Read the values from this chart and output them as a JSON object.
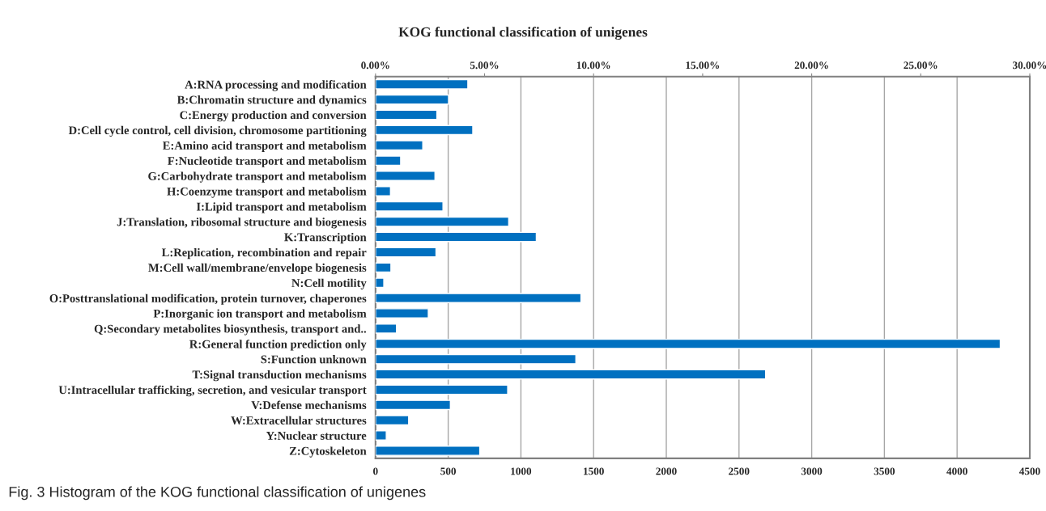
{
  "chart_data": {
    "type": "bar",
    "orientation": "horizontal",
    "title": "KOG functional classification of unigenes",
    "categories": [
      "A:RNA processing and modification",
      "B:Chromatin structure and dynamics",
      "C:Energy production and conversion",
      "D:Cell cycle control, cell division, chromosome partitioning",
      "E:Amino acid transport and metabolism",
      "F:Nucleotide transport and metabolism",
      "G:Carbohydrate transport and metabolism",
      "H:Coenzyme transport and metabolism",
      "I:Lipid transport and metabolism",
      "J:Translation, ribosomal structure and biogenesis",
      "K:Transcription",
      "L:Replication, recombination and repair",
      "M:Cell wall/membrane/envelope biogenesis",
      "N:Cell motility",
      "O:Posttranslational modification, protein turnover, chaperones",
      "P:Inorganic ion transport and metabolism",
      "Q:Secondary metabolites biosynthesis, transport and..",
      "R:General function prediction only",
      "S:Function unknown",
      "T:Signal transduction mechanisms",
      "U:Intracellular trafficking, secretion, and vesicular transport",
      "V:Defense mechanisms",
      "W:Extracellular structures",
      "Y:Nuclear structure",
      "Z:Cytoskeleton"
    ],
    "values": [
      635,
      502,
      422,
      669,
      325,
      173,
      409,
      103,
      464,
      916,
      1106,
      416,
      106,
      57,
      1413,
      363,
      144,
      4297,
      1378,
      2683,
      909,
      515,
      228,
      74,
      717
    ],
    "color": "#0070c0",
    "xlim": [
      0,
      4500
    ],
    "xticks": [
      0,
      500,
      1000,
      1500,
      2000,
      2500,
      3000,
      3500,
      4000,
      4500
    ],
    "x2lim": [
      0,
      30
    ],
    "x2ticks": [
      {
        "value": 0,
        "label": "0.00%"
      },
      {
        "value": 5,
        "label": "5.00%"
      },
      {
        "value": 10,
        "label": "10.00%"
      },
      {
        "value": 15,
        "label": "15.00%"
      },
      {
        "value": 20,
        "label": "20.00%"
      },
      {
        "value": 25,
        "label": "25.00%"
      },
      {
        "value": 30,
        "label": "30.00%"
      }
    ],
    "grid": "x",
    "annotations": [
      "Fig. 3 Histogram of the KOG functional classification of unigenes"
    ]
  }
}
